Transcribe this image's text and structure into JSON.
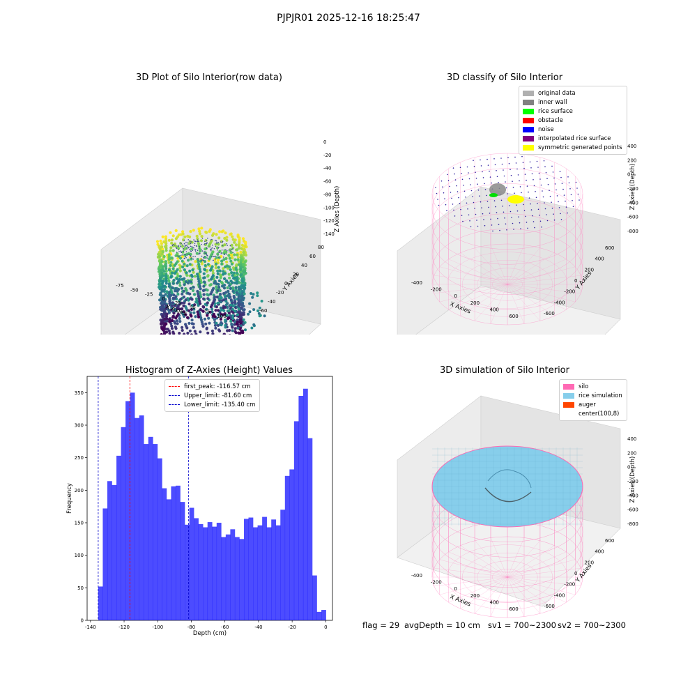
{
  "suptitle": "PJPJR01 2025-12-16 18:25:47",
  "footer": {
    "flag": "flag = 29",
    "avg": "avgDepth = 10 cm",
    "sv1": "sv1 = 700~2300",
    "sv2": "sv2 = 700~2300"
  },
  "chart_data": [
    {
      "type": "scatter",
      "title": "3D Plot of Silo Interior(row data)",
      "xlabel": "X Axies",
      "ylabel": "Y Axies",
      "zlabel": "Z Axies (Depth)",
      "x_ticks": [
        "-75",
        "-50",
        "-25",
        "0",
        "25",
        "50",
        "75",
        "100"
      ],
      "y_ticks": [
        "-60",
        "-40",
        "-20",
        "0",
        "20",
        "40",
        "60",
        "80"
      ],
      "z_ticks": [
        "0",
        "-20",
        "-40",
        "-60",
        "-80",
        "-100",
        "-120",
        "-140"
      ],
      "colormap": "viridis"
    },
    {
      "type": "scatter",
      "title": "3D classify of Silo Interior",
      "xlabel": "X Axies",
      "ylabel": "Y Axies",
      "zlabel": "Z Axies (Depth)",
      "x_ticks": [
        "-400",
        "-200",
        "0",
        "200",
        "400",
        "600"
      ],
      "y_ticks": [
        "-600",
        "-400",
        "-200",
        "0",
        "200",
        "400",
        "600"
      ],
      "z_ticks": [
        "400",
        "200",
        "0",
        "-200",
        "-400",
        "-600",
        "-800"
      ],
      "legend_position": "top-right",
      "legend": [
        {
          "label": "original data",
          "color": "#b0b0b0"
        },
        {
          "label": "inner wall",
          "color": "#808080"
        },
        {
          "label": "rice surface",
          "color": "#00ff00"
        },
        {
          "label": "obstacle",
          "color": "#ff0000"
        },
        {
          "label": "noise",
          "color": "#0000ff"
        },
        {
          "label": "interpolated rice surface",
          "color": "#800080"
        },
        {
          "label": "symmetric generated points",
          "color": "#ffff00"
        }
      ]
    },
    {
      "type": "bar",
      "title": "Histogram of Z-Axies (Height) Values",
      "xlabel": "Depth (cm)",
      "ylabel": "Frequency",
      "xlim": [
        -142,
        4
      ],
      "ylim": [
        0,
        375
      ],
      "x_ticks": [
        -140,
        -120,
        -100,
        -80,
        -60,
        -40,
        -20,
        0
      ],
      "y_ticks": [
        0,
        50,
        100,
        150,
        200,
        250,
        300,
        350
      ],
      "bin_start": -135.4,
      "bin_width": 2.71,
      "values": [
        52,
        172,
        214,
        208,
        253,
        297,
        337,
        350,
        311,
        315,
        271,
        282,
        271,
        249,
        203,
        186,
        206,
        207,
        182,
        147,
        173,
        157,
        148,
        143,
        151,
        144,
        150,
        128,
        132,
        140,
        128,
        125,
        156,
        158,
        143,
        146,
        159,
        143,
        155,
        146,
        170,
        222,
        232,
        306,
        345,
        356,
        280,
        69,
        13,
        16
      ],
      "bar_color": "#0000ff",
      "lines": [
        {
          "label": "first_peak: -116.57 cm",
          "x": -116.57,
          "color": "#ff0000"
        },
        {
          "label": "Upper_limit: -81.60 cm",
          "x": -81.6,
          "color": "#0000cc"
        },
        {
          "label": "Lower_limit: -135.40 cm",
          "x": -135.4,
          "color": "#0000cc"
        }
      ],
      "legend_position": "top-center"
    },
    {
      "type": "scatter",
      "title": "3D simulation of Silo Interior",
      "xlabel": "X Axies",
      "ylabel": "Y Axies",
      "zlabel": "Z Axies (Depth)",
      "x_ticks": [
        "-400",
        "-200",
        "0",
        "200",
        "400",
        "600"
      ],
      "y_ticks": [
        "-600",
        "-400",
        "-200",
        "0",
        "200",
        "400",
        "600"
      ],
      "z_ticks": [
        "400",
        "200",
        "0",
        "-200",
        "-400",
        "-600",
        "-800"
      ],
      "legend_position": "top-right",
      "legend": [
        {
          "label": "silo",
          "color": "#ff69b4"
        },
        {
          "label": "rice simulation",
          "color": "#87ceeb"
        },
        {
          "label": "auger",
          "color": "#ff4500"
        },
        {
          "label": "center(100,8)",
          "color": "#ffffff"
        }
      ]
    }
  ]
}
